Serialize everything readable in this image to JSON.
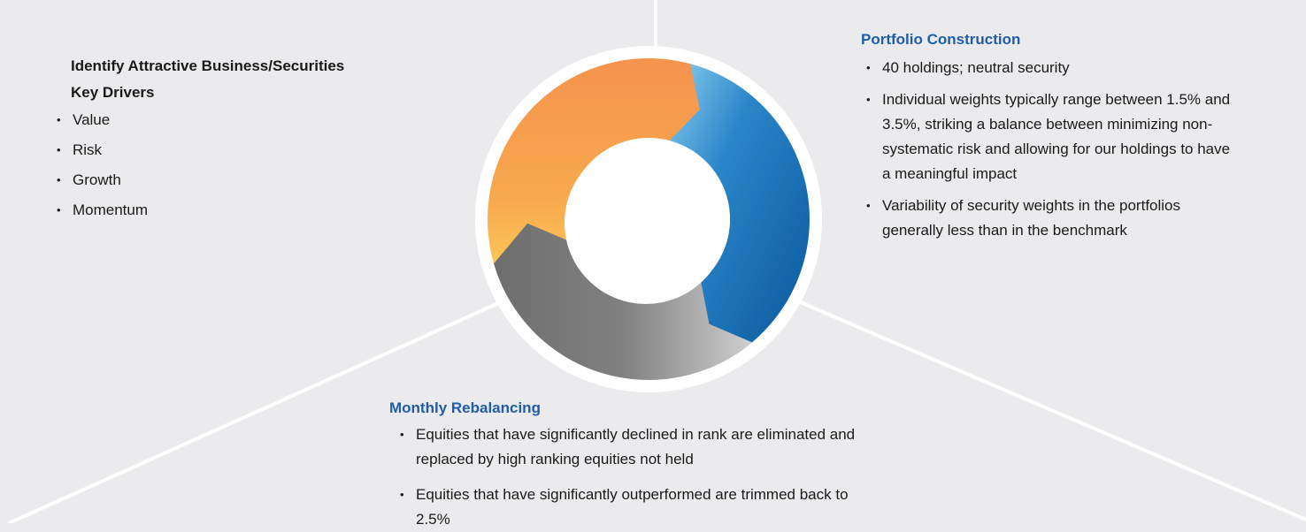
{
  "sections": [
    {
      "title": "Identify Attractive Business/Securities",
      "subtitle": "Key Drivers",
      "bullets": [
        "Value",
        "Risk",
        "Growth",
        "Momentum"
      ]
    },
    {
      "title": "Portfolio Construction",
      "bullets": [
        "40 holdings; neutral security",
        "Individual weights typically range between 1.5% and 3.5%, striking a balance between minimizing non-systematic risk and allowing for our holdings to have a meaningful impact",
        "Variability of security weights in the portfolios generally less than in the benchmark"
      ]
    },
    {
      "title": "Monthly Rebalancing",
      "bullets": [
        "Equities that have significantly declined in rank are eliminated and replaced by high ranking equities not held",
        "Equities that have significantly outperformed are trimmed back to 2.5%"
      ]
    }
  ]
}
